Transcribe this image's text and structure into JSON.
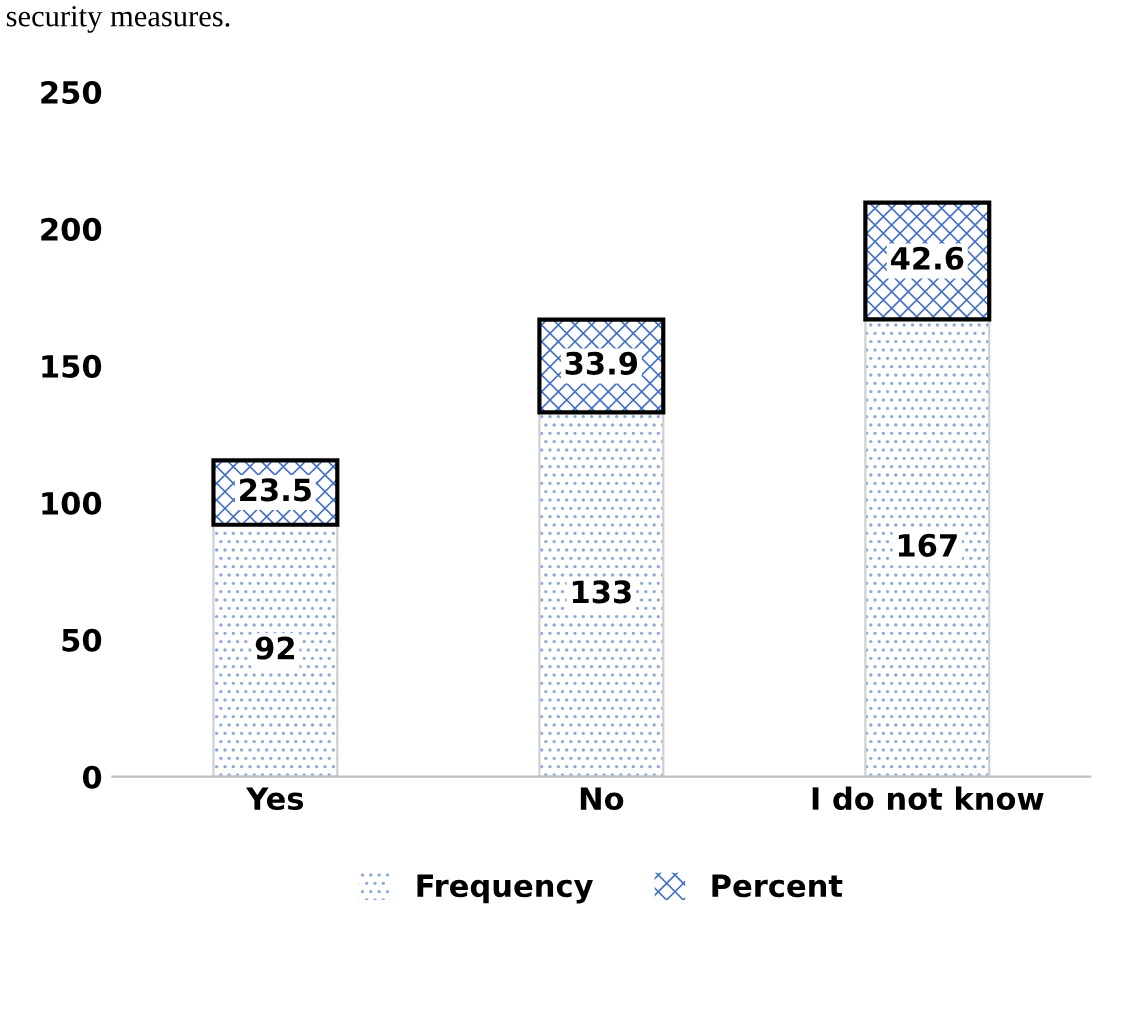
{
  "chart_data": {
    "type": "bar",
    "stacked": true,
    "categories": [
      "Yes",
      "No",
      "I do not know"
    ],
    "series": [
      {
        "name": "Frequency",
        "color": "#8eaadb",
        "values": [
          92,
          133,
          167
        ]
      },
      {
        "name": "Percent",
        "color": "#4472c4",
        "values": [
          23.5,
          33.9,
          42.6
        ]
      }
    ],
    "ylim": [
      0,
      250
    ],
    "yticks": [
      0,
      50,
      100,
      150,
      200,
      250
    ],
    "grid": false,
    "legend": "bottom",
    "data_labels": true,
    "annotations": [
      "security measures."
    ]
  }
}
